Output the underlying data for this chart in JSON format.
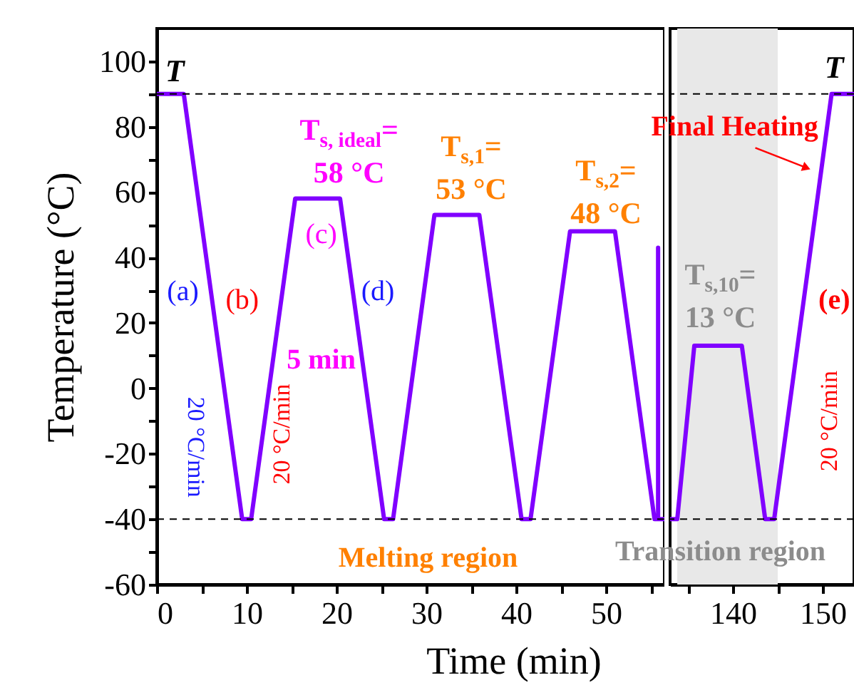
{
  "chart_data": [
    {
      "type": "line",
      "xlabel": "Time (min)",
      "ylabel": "Temperature (°C)",
      "x": [
        0,
        3,
        9.5,
        10.5,
        15.4,
        20.4,
        25.3,
        26.3,
        30.9,
        35.9,
        40.6,
        41.6,
        46,
        51,
        55.4,
        55.8,
        55.8,
        55.8,
        56.5
      ],
      "series": [
        {
          "color": "#8000ff",
          "values": [
            90,
            90,
            -40,
            -40,
            58,
            58,
            -40,
            -40,
            53,
            53,
            -40,
            -40,
            48,
            48,
            -40,
            -40,
            43,
            -40,
            -40
          ]
        }
      ],
      "xlim": [
        0,
        56.5
      ],
      "xticks": [
        0,
        {
          "value": 5,
          "label": null
        },
        10,
        {
          "value": 15,
          "label": null
        },
        20,
        {
          "value": 25,
          "label": null
        },
        30,
        {
          "value": 35,
          "label": null
        },
        40,
        {
          "value": 45,
          "label": null
        },
        50,
        {
          "value": 55,
          "label": null
        }
      ],
      "ylim": [
        -60,
        110
      ],
      "yticks": [
        -60,
        {
          "value": -50,
          "label": null
        },
        -40,
        {
          "value": -30,
          "label": null
        },
        -20,
        {
          "value": -10,
          "label": null
        },
        0,
        {
          "value": 10,
          "label": null
        },
        20,
        {
          "value": 30,
          "label": null
        },
        40,
        {
          "value": 50,
          "label": null
        },
        60,
        {
          "value": 70,
          "label": null
        },
        80,
        {
          "value": 90,
          "label": null
        },
        100
      ],
      "ref_lines": [
        {
          "axis": "y",
          "value": 90,
          "line_style": "dashed",
          "color": "#000000"
        },
        {
          "axis": "y",
          "value": -40,
          "line_style": "dashed",
          "color": "#000000"
        }
      ],
      "annotations": [
        "T",
        "T$_{s, ideal}$=\n58 °C",
        "T$_{s,1}$=\n53 °C",
        "T$_{s,2}$=\n48 °C",
        "(a)",
        "(b)",
        "(c)",
        "(d)",
        "5 min",
        "20 °C/min",
        "20 °C/min",
        "Melting region"
      ]
    },
    {
      "type": "line",
      "x": [
        133,
        133.8,
        135.7,
        141,
        143.6,
        144.6,
        151,
        153.5
      ],
      "series": [
        {
          "color": "#8000ff",
          "values": [
            -40,
            -40,
            13,
            13,
            -40,
            -40,
            90,
            90
          ]
        }
      ],
      "xlim": [
        133,
        153.5
      ],
      "xticks": [
        {
          "value": 135,
          "label": null
        },
        140,
        {
          "value": 145,
          "label": null
        },
        150
      ],
      "ylim": [
        -60,
        110
      ],
      "yticks": [
        -60,
        {
          "value": -50,
          "label": null
        },
        -40,
        {
          "value": -30,
          "label": null
        },
        -20,
        {
          "value": -10,
          "label": null
        },
        0,
        {
          "value": 10,
          "label": null
        },
        20,
        {
          "value": 30,
          "label": null
        },
        40,
        {
          "value": 50,
          "label": null
        },
        60,
        {
          "value": 70,
          "label": null
        },
        80,
        {
          "value": 90,
          "label": null
        },
        100
      ],
      "tick_labels": "x",
      "ref_lines": [
        {
          "axis": "y",
          "value": 90,
          "line_style": "dashed",
          "color": "#000000"
        },
        {
          "axis": "y",
          "value": -40,
          "line_style": "dashed",
          "color": "#000000"
        }
      ],
      "bands": [
        {
          "axis": "x",
          "from": 133.8,
          "to": 145,
          "color": "#e8e8e8"
        }
      ],
      "annotations": [
        "T",
        "Final Heating",
        "T$_{s,10}$=\n13 °C",
        "(e)",
        "20 °C/min",
        "Transition region"
      ]
    }
  ]
}
